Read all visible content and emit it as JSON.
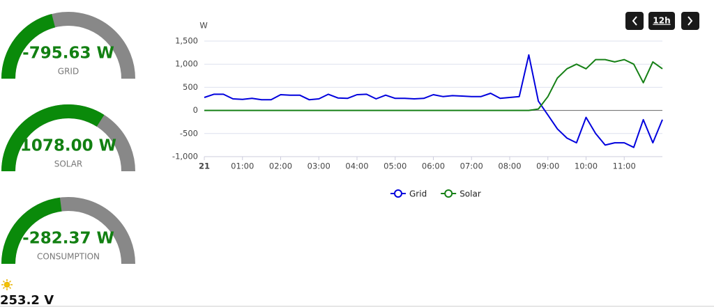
{
  "gauges": [
    {
      "value": "-795.63 W",
      "label": "GRID"
    },
    {
      "value": "1078.00 W",
      "label": "SOLAR"
    },
    {
      "value": "-282.37 W",
      "label": "CONSUMPTION"
    }
  ],
  "voltage": "253.2 V",
  "controls": {
    "range": "12h"
  },
  "chart_data": {
    "type": "line",
    "y_label": "W",
    "x": [
      0,
      0.25,
      0.5,
      0.75,
      1,
      1.25,
      1.5,
      1.75,
      2,
      2.25,
      2.5,
      2.75,
      3,
      3.25,
      3.5,
      3.75,
      4,
      4.25,
      4.5,
      4.75,
      5,
      5.25,
      5.5,
      5.75,
      6,
      6.25,
      6.5,
      6.75,
      7,
      7.25,
      7.5,
      7.75,
      8,
      8.25,
      8.5,
      8.75,
      9,
      9.25,
      9.5,
      9.75,
      10,
      10.25,
      10.5,
      10.75,
      11,
      11.25,
      11.5,
      11.75,
      12
    ],
    "series": [
      {
        "name": "Grid",
        "color": "#0000dd",
        "values": [
          280,
          350,
          350,
          250,
          240,
          260,
          230,
          230,
          340,
          330,
          330,
          230,
          250,
          350,
          270,
          260,
          340,
          350,
          250,
          330,
          260,
          260,
          250,
          260,
          340,
          300,
          320,
          310,
          300,
          300,
          370,
          260,
          280,
          300,
          1200,
          200,
          -100,
          -400,
          -600,
          -700,
          -150,
          -500,
          -750,
          -700,
          -700,
          -800,
          -200,
          -700,
          -200
        ]
      },
      {
        "name": "Solar",
        "color": "#168016",
        "values": [
          0,
          0,
          0,
          0,
          0,
          0,
          0,
          0,
          0,
          0,
          0,
          0,
          0,
          0,
          0,
          0,
          0,
          0,
          0,
          0,
          0,
          0,
          0,
          0,
          0,
          0,
          0,
          0,
          0,
          0,
          0,
          0,
          0,
          0,
          0,
          30,
          300,
          700,
          900,
          1000,
          900,
          1100,
          1100,
          1050,
          1100,
          1000,
          600,
          1050,
          900
        ]
      }
    ],
    "xlim": [
      0,
      12
    ],
    "xticks": [
      {
        "value": 0,
        "label": "21"
      },
      {
        "value": 1,
        "label": "01:00"
      },
      {
        "value": 2,
        "label": "02:00"
      },
      {
        "value": 3,
        "label": "03:00"
      },
      {
        "value": 4,
        "label": "04:00"
      },
      {
        "value": 5,
        "label": "05:00"
      },
      {
        "value": 6,
        "label": "06:00"
      },
      {
        "value": 7,
        "label": "07:00"
      },
      {
        "value": 8,
        "label": "08:00"
      },
      {
        "value": 9,
        "label": "09:00"
      },
      {
        "value": 10,
        "label": "10:00"
      },
      {
        "value": 11,
        "label": "11:00"
      }
    ],
    "ylim": [
      -1000,
      1500
    ],
    "yticks": [
      {
        "value": -1000,
        "label": "-1,000"
      },
      -500,
      0,
      500,
      {
        "value": 1000,
        "label": "1,000"
      },
      {
        "value": 1500,
        "label": "1,500"
      }
    ],
    "grid": true,
    "legend": "bottom"
  }
}
